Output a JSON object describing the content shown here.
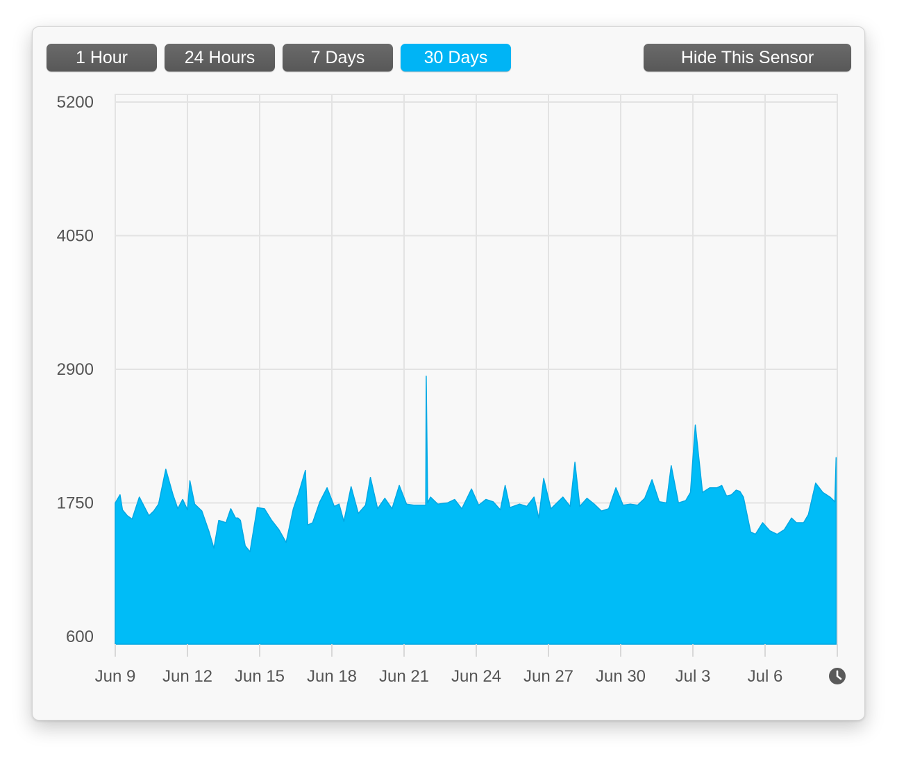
{
  "toolbar": {
    "ranges": [
      {
        "label": "1 Hour",
        "active": false
      },
      {
        "label": "24 Hours",
        "active": false
      },
      {
        "label": "7 Days",
        "active": false
      },
      {
        "label": "30 Days",
        "active": true
      }
    ],
    "hide_label": "Hide This Sensor"
  },
  "colors": {
    "accent": "#00b4f5",
    "area_fill": "#00bcf7",
    "area_stroke": "#00a8e4",
    "button_bg": "#5f5f5f",
    "grid": "#e3e3e3"
  },
  "footer": {
    "clock_icon": "clock-icon"
  },
  "chart_data": {
    "type": "area",
    "title": "",
    "xlabel": "",
    "ylabel": "",
    "x_tick_labels": [
      "Jun 9",
      "Jun 12",
      "Jun 15",
      "Jun 18",
      "Jun 21",
      "Jun 24",
      "Jun 27",
      "Jun 30",
      "Jul 3",
      "Jul 6"
    ],
    "y_tick_labels": [
      "5200",
      "4050",
      "2900",
      "1750",
      "600"
    ],
    "y_ticks": [
      5200,
      4050,
      2900,
      1750,
      600
    ],
    "ylim": [
      600,
      5200
    ],
    "x_start": "Jun 9",
    "x_end": "Jul 9",
    "x_range_days": [
      0,
      30
    ],
    "grid": true,
    "series": [
      {
        "x": [
          0,
          0.2,
          0.3,
          0.5,
          0.7,
          1.0,
          1.4,
          1.6,
          1.8,
          2.1,
          2.4,
          2.6,
          2.8,
          3.0,
          3.1,
          3.3,
          3.6,
          3.9,
          4.1,
          4.3,
          4.6,
          4.8,
          5.0,
          5.1,
          5.2,
          5.4,
          5.6,
          5.9,
          6.2,
          6.5,
          6.8,
          7.1,
          7.4,
          7.6,
          7.9,
          8.0,
          8.2,
          8.5,
          8.8,
          9.1,
          9.3,
          9.5,
          9.8,
          10.1,
          10.4,
          10.6,
          10.9,
          11.2,
          11.5,
          11.8,
          12.1,
          12.4,
          12.6,
          12.9,
          12.92,
          12.98,
          13.1,
          13.4,
          13.8,
          14.1,
          14.4,
          14.8,
          15.1,
          15.4,
          15.7,
          16.0,
          16.2,
          16.4,
          16.8,
          17.1,
          17.4,
          17.6,
          17.8,
          18.1,
          18.4,
          18.6,
          18.9,
          19.1,
          19.3,
          19.6,
          19.9,
          20.2,
          20.5,
          20.8,
          21.1,
          21.4,
          21.7,
          22.0,
          22.3,
          22.6,
          22.9,
          23.1,
          23.4,
          23.7,
          23.9,
          24.1,
          24.4,
          24.7,
          25.0,
          25.2,
          25.4,
          25.6,
          25.8,
          25.95,
          26.1,
          26.4,
          26.6,
          26.9,
          27.2,
          27.5,
          27.8,
          28.1,
          28.3,
          28.6,
          28.8,
          29.1,
          29.4,
          29.7,
          29.9,
          29.95
        ],
        "y": [
          1750,
          1820,
          1690,
          1640,
          1610,
          1800,
          1640,
          1680,
          1740,
          2040,
          1820,
          1700,
          1780,
          1690,
          1940,
          1740,
          1680,
          1500,
          1360,
          1600,
          1580,
          1700,
          1620,
          1620,
          1600,
          1380,
          1330,
          1710,
          1700,
          1600,
          1520,
          1410,
          1700,
          1820,
          2030,
          1560,
          1580,
          1760,
          1880,
          1720,
          1740,
          1590,
          1890,
          1660,
          1730,
          1970,
          1700,
          1790,
          1700,
          1900,
          1740,
          1730,
          1730,
          1730,
          2840,
          1750,
          1800,
          1740,
          1750,
          1780,
          1700,
          1870,
          1730,
          1780,
          1760,
          1690,
          1900,
          1710,
          1740,
          1720,
          1800,
          1620,
          1960,
          1700,
          1760,
          1800,
          1720,
          2100,
          1720,
          1790,
          1740,
          1680,
          1700,
          1880,
          1730,
          1740,
          1730,
          1790,
          1950,
          1760,
          1750,
          2070,
          1750,
          1770,
          1840,
          2420,
          1840,
          1880,
          1880,
          1900,
          1810,
          1820,
          1860,
          1850,
          1800,
          1500,
          1480,
          1580,
          1510,
          1480,
          1520,
          1620,
          1580,
          1580,
          1650,
          1920,
          1840,
          1800,
          1760,
          2140
        ]
      }
    ]
  }
}
